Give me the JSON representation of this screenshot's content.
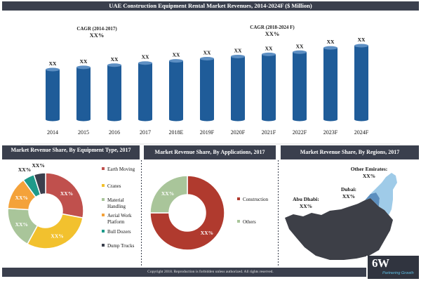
{
  "header": {
    "title": "UAE Construction Equipment Rental Market Revenues, 2014-2024F ($ Million)"
  },
  "cagr_left": {
    "label": "CAGR (2014-2017)",
    "value": "XX%"
  },
  "cagr_right": {
    "label": "CAGR (2018-2024 F)",
    "value": "XX%"
  },
  "colors": {
    "header_bg": "#3a3f4d",
    "bar": "#1f5c99",
    "bar_top": "#5d8fc3",
    "earth_moving": "#c0504d",
    "cranes": "#f2c12e",
    "material_handling": "#a9c59a",
    "aerial_work_platform": "#f4a23a",
    "bull_dozers": "#1e9a8a",
    "dump_trucks": "#3a3f4d",
    "construction": "#b03a2e",
    "others": "#a9c59a",
    "map_land": "#3d3f47",
    "map_highlight": "#9fcbe8",
    "logo_accent": "#5fc2e8"
  },
  "chart_data": [
    {
      "type": "bar",
      "title": "UAE Construction Equipment Rental Market Revenues, 2014-2024F ($ Million)",
      "categories": [
        "2014",
        "2015",
        "2016",
        "2017",
        "2018E",
        "2019F",
        "2020F",
        "2021F",
        "2022F",
        "2023F",
        "2024F"
      ],
      "values": [
        23,
        24,
        25,
        26,
        27,
        28,
        29,
        30,
        31,
        33,
        34
      ],
      "data_labels": [
        "XX",
        "XX",
        "XX",
        "XX",
        "XX",
        "XX",
        "XX",
        "XX",
        "XX",
        "XX",
        "XX"
      ],
      "grid": false,
      "legend": "none"
    },
    {
      "type": "pie",
      "title": "Market Revenue Share, By Equipment Type, 2017",
      "labels": [
        "Earth Moving",
        "Cranes",
        "Material Handling",
        "Aerial Work Platform",
        "Bull Dozers",
        "Dump Trucks"
      ],
      "values": [
        28,
        30,
        18,
        14,
        5,
        5
      ],
      "data_labels": [
        "XX%",
        "XX%",
        "XX%",
        "XX%",
        "XX%",
        "XX%"
      ],
      "color_keys": [
        "earth_moving",
        "cranes",
        "material_handling",
        "aerial_work_platform",
        "bull_dozers",
        "dump_trucks"
      ],
      "legend": "right"
    },
    {
      "type": "pie",
      "title": "Market Revenue Share, By Applications, 2017",
      "labels": [
        "Construction",
        "Others"
      ],
      "values": [
        75,
        25
      ],
      "data_labels": [
        "XX%",
        "XX%"
      ],
      "color_keys": [
        "construction",
        "others"
      ],
      "legend": "right"
    }
  ],
  "regions_panel": {
    "title": "Market Revenue Share, By Regions, 2017",
    "labels": [
      {
        "name": "Other Emirates:",
        "value": "XX%"
      },
      {
        "name": "Dubai:",
        "value": "XX%"
      },
      {
        "name": "Abu Dhabi:",
        "value": "XX%"
      }
    ]
  },
  "footer": {
    "copyright": "Copyright 2018. Reproduction is forbidden unless authorized. All rights reserved."
  },
  "logo": {
    "main": "6W",
    "sub": "Partnering Growth"
  }
}
